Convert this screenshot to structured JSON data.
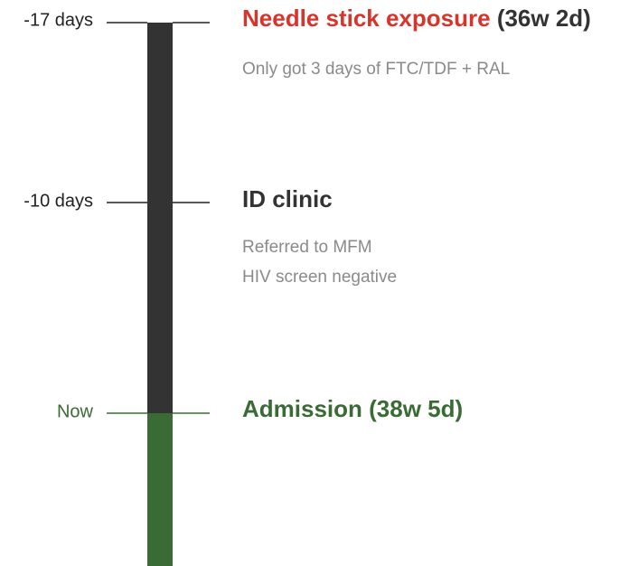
{
  "timeline": {
    "events": [
      {
        "time": "-17 days",
        "title": "Needle stick exposure",
        "title_suffix": "(36w 2d)",
        "notes": [
          "Only got 3 days of FTC/TDF + RAL"
        ]
      },
      {
        "time": "-10 days",
        "title": "ID clinic",
        "notes": [
          "Referred to MFM",
          "HIV screen negative"
        ]
      },
      {
        "time": "Now",
        "title": "Admission (38w 5d)",
        "notes": []
      }
    ]
  }
}
